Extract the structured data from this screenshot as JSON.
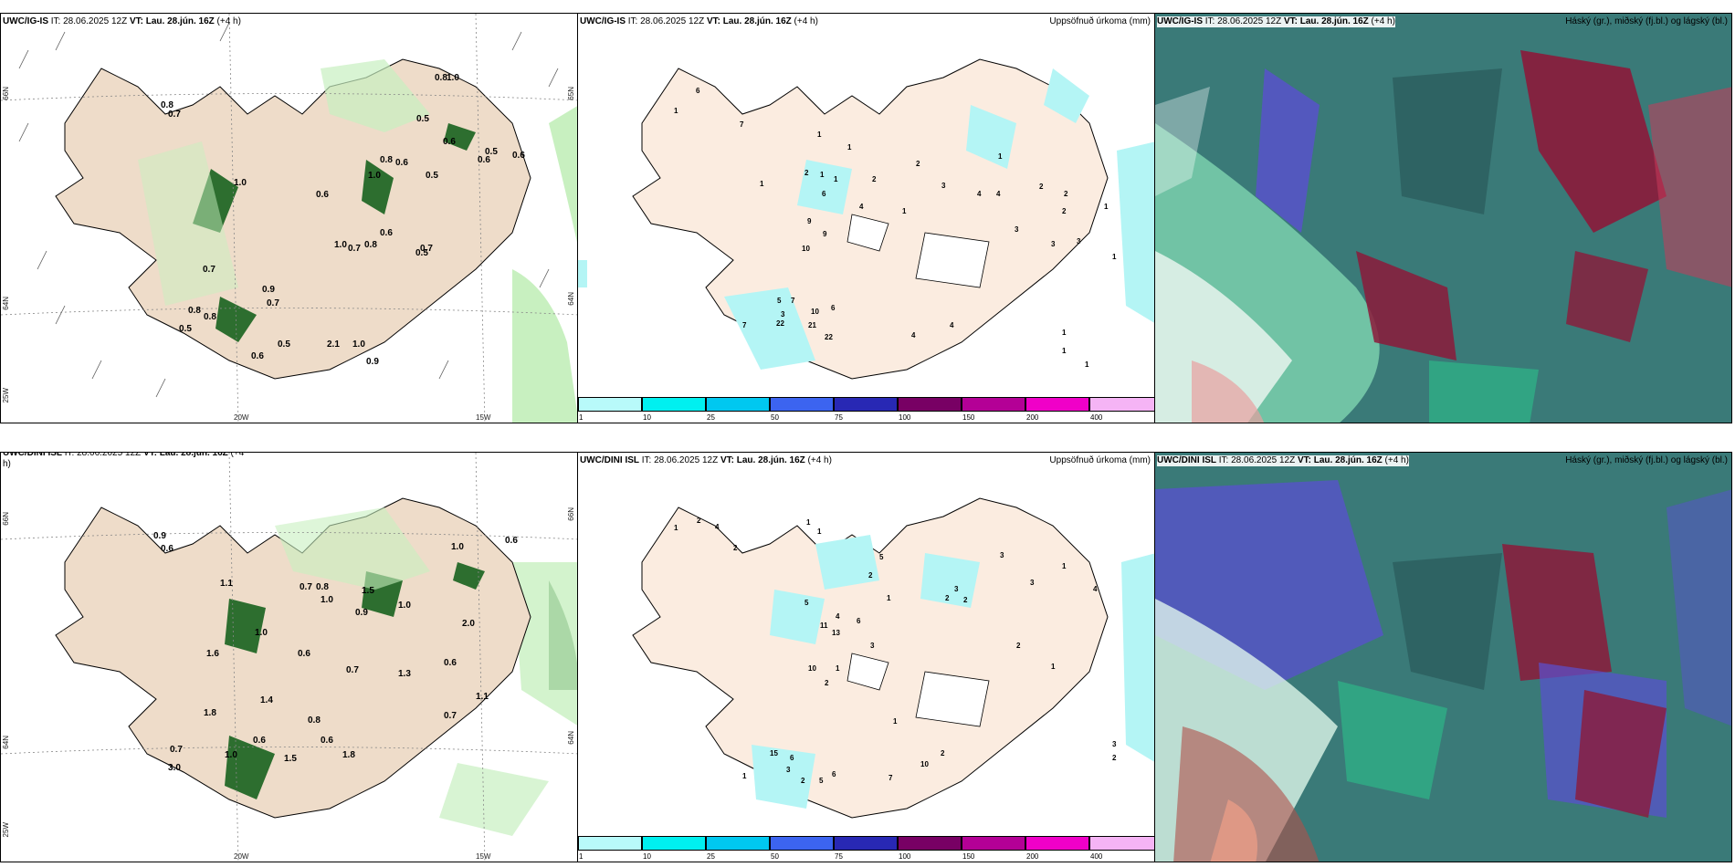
{
  "rows": [
    {
      "model_bold": "UWC/IG-IS",
      "model_rest": " IT: 28.06.2025 12Z ",
      "vt_bold": "VT: Lau. 28.jún. 16Z",
      "offset": " (+4 h)"
    },
    {
      "model_bold": "UWC/DINI ISL",
      "model_rest": " IT: 28.06.2025 12Z ",
      "vt_bold": "VT: Lau. 28.jún. 16Z",
      "offset": " (+4 h)"
    }
  ],
  "panel_titles": {
    "precip": "Uppsöfnuð úrkoma (mm)",
    "clouds": "Háský (gr.), miðský (fj.bl.) og lágský (bl.)"
  },
  "axis_labels": {
    "lat66": "66N",
    "lat64": "64N",
    "lat65": "65N",
    "lon20": "20W",
    "lon15": "15W",
    "lon25": "25W"
  },
  "colorbar": {
    "labels": [
      "1",
      "10",
      "25",
      "50",
      "75",
      "100",
      "150",
      "200",
      "400"
    ],
    "colors": [
      "#b8fafa",
      "#00f0f0",
      "#00c8f0",
      "#3c64f0",
      "#2828b4",
      "#780064",
      "#b40096",
      "#f000c8",
      "#f5b4f5"
    ]
  },
  "colors": {
    "land": "#fbece0",
    "land_wind": "#eedcc9",
    "sea_green": "#c8f0c0",
    "dark_green": "#0a5a14",
    "cyan": "#b4f5f5",
    "cloud_teal": "#2f6f70",
    "cloud_red": "#8c1a3a",
    "cloud_blue": "#5a50d0"
  },
  "wind_values_top": [
    "0.8",
    "0.7",
    "1.0",
    "0.8",
    "0.5",
    "0.6",
    "0.6",
    "0.8",
    "0.6",
    "1.0",
    "0.5",
    "0.6",
    "0.7",
    "1.0",
    "0.8",
    "0.6",
    "0.7",
    "0.5",
    "1.0",
    "0.8",
    "0.8",
    "0.5",
    "0.6",
    "0.7",
    "0.9",
    "0.5",
    "2.1",
    "1.0",
    "0.9",
    "0.6",
    "0.7",
    "0.5"
  ],
  "wind_values_bottom": [
    "0.9",
    "0.6",
    "1.1",
    "0.7",
    "0.8",
    "1.0",
    "1.5",
    "0.9",
    "1.0",
    "1.6",
    "0.6",
    "0.7",
    "1.0",
    "1.3",
    "1.0",
    "2.0",
    "0.6",
    "0.6",
    "1.4",
    "0.8",
    "0.6",
    "0.6",
    "1.0",
    "1.5",
    "1.8",
    "0.7",
    "3.0",
    "1.8",
    "0.7",
    "1.1"
  ],
  "precip_values_top": [
    "6",
    "1",
    "7",
    "1",
    "1",
    "2",
    "1",
    "1",
    "2",
    "2",
    "6",
    "9",
    "9",
    "4",
    "1",
    "10",
    "1",
    "3",
    "4",
    "3",
    "4",
    "2",
    "2",
    "1",
    "2",
    "1",
    "3",
    "3",
    "1",
    "5",
    "3",
    "7",
    "22",
    "21",
    "10",
    "6",
    "7",
    "22",
    "4",
    "4",
    "1",
    "1",
    "1"
  ],
  "precip_values_bottom": [
    "2",
    "1",
    "4",
    "2",
    "1",
    "1",
    "2",
    "5",
    "1",
    "2",
    "3",
    "2",
    "4",
    "11",
    "13",
    "6",
    "5",
    "3",
    "10",
    "1",
    "2",
    "3",
    "3",
    "1",
    "4",
    "2",
    "1",
    "15",
    "3",
    "6",
    "2",
    "5",
    "6",
    "7",
    "10",
    "2",
    "1",
    "1",
    "3",
    "2"
  ]
}
